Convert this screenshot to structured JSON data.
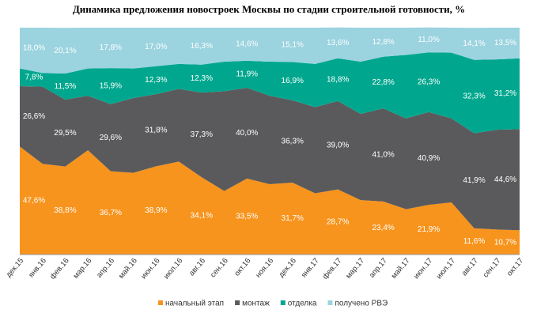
{
  "chart_data": {
    "type": "stacked_area",
    "title": "Динамика предложения новостроек Москвы по стадии строительной готовности, %",
    "categories": [
      "дек.15",
      "янв.16",
      "фев.16",
      "мар.16",
      "апр.16",
      "май.16",
      "июн.16",
      "июл.16",
      "авг.16",
      "сен.16",
      "окт.16",
      "ноя.16",
      "дек.16",
      "янв.17",
      "фев.17",
      "мар.17",
      "апр.17",
      "май.17",
      "июн.17",
      "июл.17",
      "авг.17",
      "сен.17",
      "окт.17"
    ],
    "ylim": [
      0,
      100
    ],
    "series": [
      {
        "name": "начальный этап",
        "color": "#f7941d",
        "values": [
          47.6,
          40,
          38.8,
          46,
          36.7,
          36,
          38.9,
          41,
          34.1,
          28,
          33.5,
          31,
          31.7,
          27,
          28.7,
          24,
          23.4,
          20,
          21.9,
          23,
          11.6,
          11,
          10.7
        ],
        "value_labels": [
          "47,6%",
          null,
          "38,8%",
          null,
          "36,7%",
          null,
          "38,9%",
          null,
          "34,1%",
          null,
          "33,5%",
          null,
          "31,7%",
          null,
          "28,7%",
          null,
          "23,4%",
          null,
          "21,9%",
          null,
          "11,6%",
          null,
          "10,7%"
        ]
      },
      {
        "name": "монтаж",
        "color": "#5a5a5c",
        "values": [
          26.6,
          34,
          29.5,
          24,
          29.6,
          33,
          31.8,
          32,
          37.3,
          44,
          40.0,
          39,
          36.3,
          38,
          39.0,
          38,
          41.0,
          40,
          40.9,
          37,
          41.9,
          44,
          44.6
        ],
        "value_labels": [
          "26,6%",
          null,
          "29,5%",
          null,
          "29,6%",
          null,
          "31,8%",
          null,
          "37,3%",
          null,
          "40,0%",
          null,
          "36,3%",
          null,
          "39,0%",
          null,
          "41,0%",
          null,
          "40,9%",
          null,
          "41,9%",
          null,
          "44,6%"
        ]
      },
      {
        "name": "отделка",
        "color": "#00a78e",
        "values": [
          7.8,
          6,
          11.5,
          12,
          15.9,
          13,
          12.3,
          11,
          12.3,
          13,
          11.9,
          15,
          16.9,
          19,
          18.8,
          23,
          22.8,
          28,
          26.3,
          29,
          32.3,
          31,
          31.2
        ],
        "value_labels": [
          "7,8%",
          null,
          "11,5%",
          null,
          "15,9%",
          null,
          "12,3%",
          null,
          "12,3%",
          null,
          "11,9%",
          null,
          "16,9%",
          null,
          "18,8%",
          null,
          "22,8%",
          null,
          "26,3%",
          null,
          "32,3%",
          null,
          "31,2%"
        ]
      },
      {
        "name": "получено РВЭ",
        "color": "#9bd3df",
        "values": [
          18.0,
          20,
          20.1,
          18,
          17.8,
          18,
          17.0,
          16,
          16.3,
          15,
          14.6,
          15,
          15.1,
          16,
          13.6,
          15,
          12.8,
          12,
          11.0,
          11,
          14.1,
          14,
          13.5
        ],
        "value_labels": [
          "18,0%",
          null,
          "20,1%",
          null,
          "17,8%",
          null,
          "17,0%",
          null,
          "16,3%",
          null,
          "14,6%",
          null,
          "15,1%",
          null,
          "13,6%",
          null,
          "12,8%",
          null,
          "11,0%",
          null,
          "14,1%",
          null,
          "13,5%"
        ]
      }
    ]
  }
}
